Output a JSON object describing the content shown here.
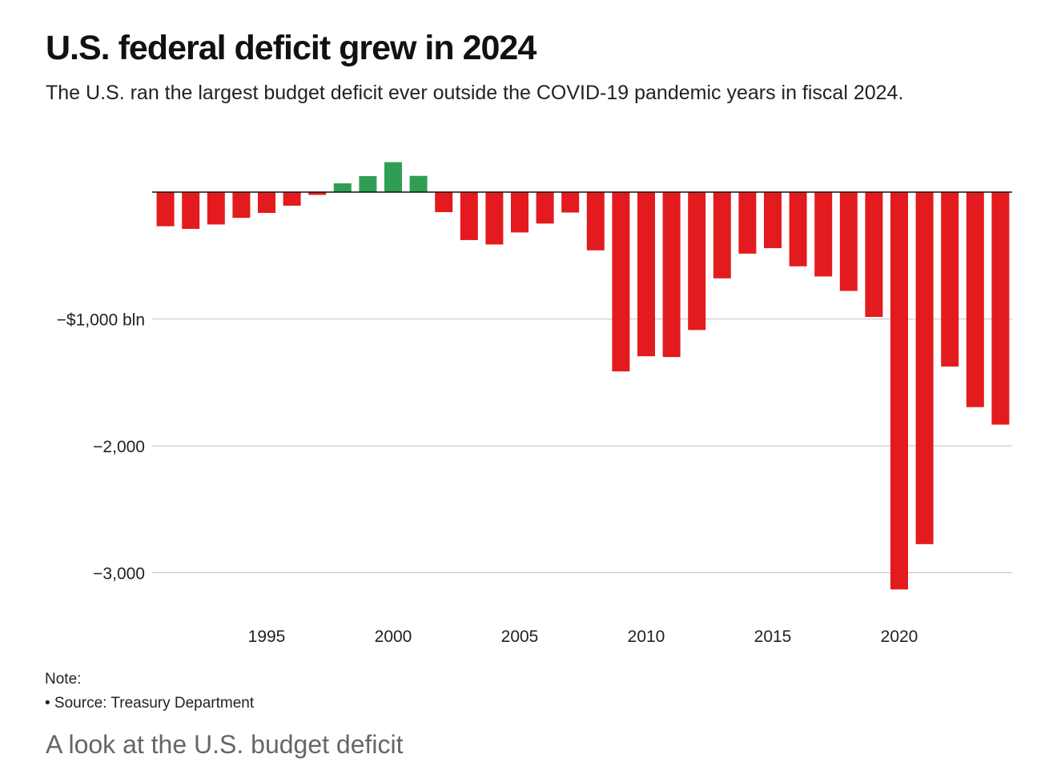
{
  "chart_data": {
    "type": "bar",
    "title": "U.S. federal deficit grew in 2024",
    "subtitle": "The U.S. ran the largest budget deficit ever outside the COVID-19 pandemic years in fiscal 2024.",
    "xlabel": "",
    "ylabel": "",
    "categories": [
      1991,
      1992,
      1993,
      1994,
      1995,
      1996,
      1997,
      1998,
      1999,
      2000,
      2001,
      2002,
      2003,
      2004,
      2005,
      2006,
      2007,
      2008,
      2009,
      2010,
      2011,
      2012,
      2013,
      2014,
      2015,
      2016,
      2017,
      2018,
      2019,
      2020,
      2021,
      2022,
      2023,
      2024
    ],
    "values": [
      -269,
      -290,
      -255,
      -203,
      -164,
      -107,
      -22,
      69,
      126,
      236,
      128,
      -158,
      -378,
      -413,
      -318,
      -248,
      -161,
      -459,
      -1413,
      -1294,
      -1300,
      -1087,
      -680,
      -485,
      -442,
      -585,
      -665,
      -779,
      -984,
      -3132,
      -2775,
      -1375,
      -1695,
      -1833
    ],
    "ylim": [
      -3200,
      300
    ],
    "y_ticks": [
      {
        "value": -1000,
        "label": "−$1,000 bln"
      },
      {
        "value": -2000,
        "label": "−2,000"
      },
      {
        "value": -3000,
        "label": "−3,000"
      }
    ],
    "x_ticks": [
      1995,
      2000,
      2005,
      2010,
      2015,
      2020
    ],
    "grid": true,
    "colors": {
      "deficit": "#e31b1e",
      "surplus": "#2f9e52",
      "grid": "#cccccc",
      "zero_line": "#111111"
    }
  },
  "note": "Note:",
  "source": "• Source: Treasury Department",
  "footer": "A look at the U.S. budget deficit"
}
